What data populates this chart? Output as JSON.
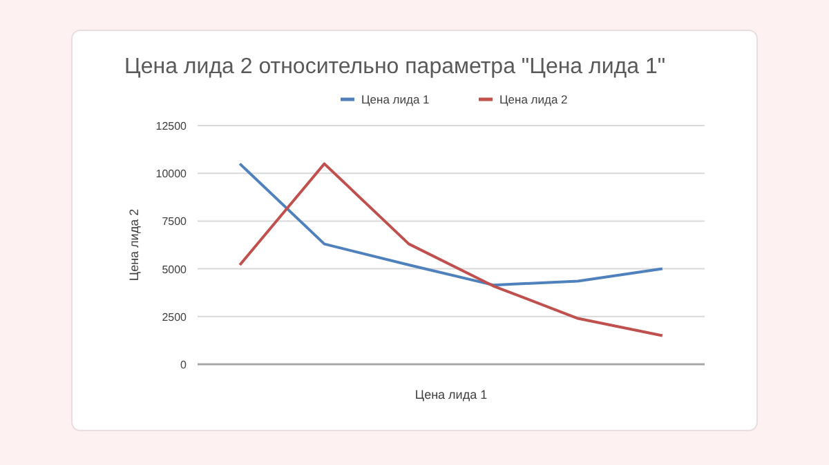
{
  "chart_data": {
    "type": "line",
    "title": "Цена лида 2 относительно параметра \"Цена лида 1\"",
    "xlabel": "Цена лида 1",
    "ylabel": "Цена лида 2",
    "categories": [
      null,
      null,
      null,
      null,
      null,
      null
    ],
    "series": [
      {
        "name": "Цена лида 1",
        "color": "#4f81bd",
        "values": [
          10500,
          6300,
          5200,
          4150,
          4350,
          5000
        ]
      },
      {
        "name": "Цена лида 2",
        "color": "#c0504d",
        "values": [
          5200,
          10500,
          6300,
          4100,
          2400,
          1500
        ]
      }
    ],
    "ylim": [
      0,
      12500
    ],
    "yticks": [
      0,
      2500,
      5000,
      7500,
      10000,
      12500
    ],
    "grid": "y",
    "legend": "top",
    "marker": "none",
    "line_style": "solid"
  }
}
